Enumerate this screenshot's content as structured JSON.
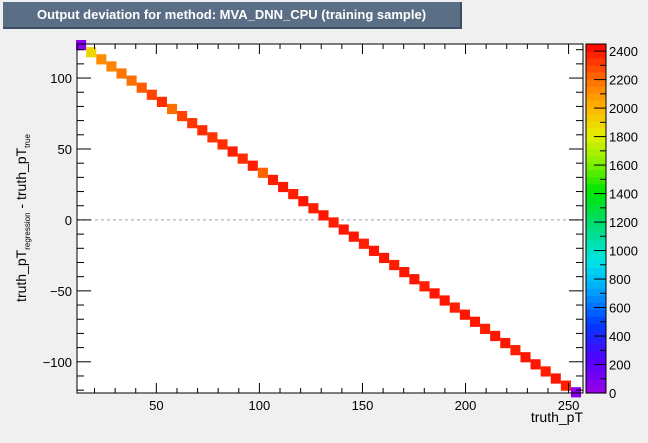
{
  "title": "Output deviation for method: MVA_DNN_CPU (training sample)",
  "chart_data": {
    "type": "heatmap",
    "title": "Output deviation for method: MVA_DNN_CPU (training sample)",
    "xlabel": "truth_pT",
    "ylabel": {
      "main1": "truth_pT",
      "sub1": "regression",
      "main2": " - truth_pT",
      "sub2": "true"
    },
    "xlim": [
      11.5,
      257
    ],
    "ylim": [
      -122,
      124
    ],
    "xticks": [
      50,
      100,
      150,
      200,
      250
    ],
    "yticks": [
      -100,
      -50,
      0,
      50,
      100
    ],
    "zlim": [
      0,
      2450
    ],
    "zticks": [
      0,
      200,
      400,
      600,
      800,
      1000,
      1200,
      1400,
      1600,
      1800,
      2000,
      2200,
      2400
    ],
    "reference_line_y": 0,
    "bin_width": 4.9,
    "cells": [
      {
        "x": 13.5,
        "y": 123.2,
        "z": 60
      },
      {
        "x": 18.4,
        "y": 118.2,
        "z": 1900
      },
      {
        "x": 23.3,
        "y": 113.2,
        "z": 2120
      },
      {
        "x": 28.2,
        "y": 108.2,
        "z": 2150
      },
      {
        "x": 33.1,
        "y": 103.2,
        "z": 2180
      },
      {
        "x": 38.0,
        "y": 98.2,
        "z": 2200
      },
      {
        "x": 42.9,
        "y": 93.2,
        "z": 2250
      },
      {
        "x": 47.8,
        "y": 88.2,
        "z": 2300
      },
      {
        "x": 52.7,
        "y": 83.2,
        "z": 2350
      },
      {
        "x": 57.6,
        "y": 78.2,
        "z": 2200
      },
      {
        "x": 62.5,
        "y": 73.2,
        "z": 2300
      },
      {
        "x": 67.4,
        "y": 68.2,
        "z": 2330
      },
      {
        "x": 72.3,
        "y": 63.2,
        "z": 2350
      },
      {
        "x": 77.2,
        "y": 58.2,
        "z": 2330
      },
      {
        "x": 82.1,
        "y": 53.2,
        "z": 2350
      },
      {
        "x": 87.0,
        "y": 48.2,
        "z": 2380
      },
      {
        "x": 91.9,
        "y": 43.2,
        "z": 2350
      },
      {
        "x": 96.8,
        "y": 38.2,
        "z": 2380
      },
      {
        "x": 101.7,
        "y": 33.2,
        "z": 2230
      },
      {
        "x": 106.6,
        "y": 28.2,
        "z": 2380
      },
      {
        "x": 111.5,
        "y": 23.2,
        "z": 2400
      },
      {
        "x": 116.4,
        "y": 18.2,
        "z": 2380
      },
      {
        "x": 121.3,
        "y": 13.2,
        "z": 2400
      },
      {
        "x": 126.2,
        "y": 8.2,
        "z": 2380
      },
      {
        "x": 131.1,
        "y": 3.2,
        "z": 2400
      },
      {
        "x": 136.0,
        "y": -1.8,
        "z": 2380
      },
      {
        "x": 140.9,
        "y": -6.8,
        "z": 2400
      },
      {
        "x": 145.8,
        "y": -11.8,
        "z": 2400
      },
      {
        "x": 150.7,
        "y": -16.8,
        "z": 2380
      },
      {
        "x": 155.6,
        "y": -21.8,
        "z": 2400
      },
      {
        "x": 160.5,
        "y": -26.8,
        "z": 2400
      },
      {
        "x": 165.4,
        "y": -31.8,
        "z": 2380
      },
      {
        "x": 170.3,
        "y": -36.8,
        "z": 2400
      },
      {
        "x": 175.2,
        "y": -41.8,
        "z": 2400
      },
      {
        "x": 180.1,
        "y": -46.8,
        "z": 2380
      },
      {
        "x": 185.0,
        "y": -51.8,
        "z": 2400
      },
      {
        "x": 189.9,
        "y": -56.8,
        "z": 2400
      },
      {
        "x": 194.8,
        "y": -61.8,
        "z": 2380
      },
      {
        "x": 199.7,
        "y": -66.8,
        "z": 2400
      },
      {
        "x": 204.6,
        "y": -71.8,
        "z": 2400
      },
      {
        "x": 209.5,
        "y": -76.8,
        "z": 2380
      },
      {
        "x": 214.4,
        "y": -81.8,
        "z": 2400
      },
      {
        "x": 219.3,
        "y": -86.8,
        "z": 2400
      },
      {
        "x": 224.2,
        "y": -91.8,
        "z": 2380
      },
      {
        "x": 229.1,
        "y": -96.8,
        "z": 2400
      },
      {
        "x": 234.0,
        "y": -101.8,
        "z": 2400
      },
      {
        "x": 238.9,
        "y": -106.8,
        "z": 2380
      },
      {
        "x": 243.8,
        "y": -111.8,
        "z": 2400
      },
      {
        "x": 248.7,
        "y": -116.8,
        "z": 2380
      },
      {
        "x": 253.6,
        "y": -121.5,
        "z": 60
      }
    ]
  }
}
